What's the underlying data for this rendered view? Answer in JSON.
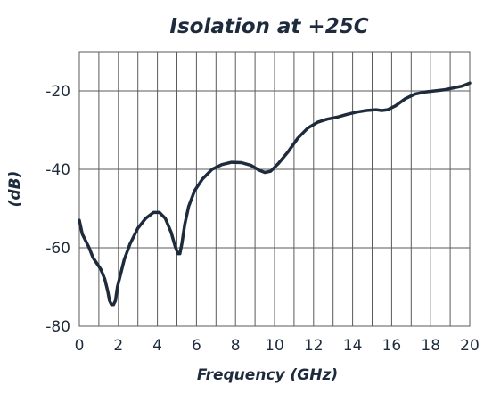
{
  "chart_data": {
    "type": "line",
    "title": "Isolation at +25C",
    "xlabel": "Frequency (GHz)",
    "ylabel": "(dB)",
    "xlim": [
      0,
      20
    ],
    "ylim": [
      -80,
      -10
    ],
    "x_ticks": [
      0,
      2,
      4,
      6,
      8,
      10,
      12,
      14,
      16,
      18,
      20
    ],
    "y_ticks": [
      -80,
      -60,
      -40,
      -20
    ],
    "grid": true,
    "series": [
      {
        "color": "#1e2b3c",
        "x": [
          0.0,
          0.15,
          0.3,
          0.5,
          0.7,
          0.9,
          1.1,
          1.3,
          1.45,
          1.55,
          1.65,
          1.75,
          1.85,
          1.95,
          2.1,
          2.3,
          2.6,
          3.0,
          3.4,
          3.8,
          4.1,
          4.4,
          4.7,
          4.9,
          5.05,
          5.15,
          5.25,
          5.4,
          5.6,
          5.9,
          6.3,
          6.8,
          7.3,
          7.8,
          8.3,
          8.8,
          9.2,
          9.5,
          9.8,
          10.2,
          10.7,
          11.2,
          11.7,
          12.2,
          12.7,
          13.2,
          13.7,
          14.2,
          14.7,
          15.2,
          15.5,
          15.8,
          16.2,
          16.7,
          17.2,
          17.7,
          18.2,
          18.7,
          19.2,
          19.6,
          20.0
        ],
        "y": [
          -53.0,
          -56.5,
          -58.0,
          -60.0,
          -62.5,
          -64.0,
          -65.5,
          -68.0,
          -71.0,
          -73.5,
          -74.5,
          -74.5,
          -73.5,
          -70.0,
          -67.0,
          -63.0,
          -59.0,
          -55.0,
          -52.5,
          -51.0,
          -51.0,
          -52.5,
          -56.0,
          -59.5,
          -61.5,
          -61.5,
          -59.0,
          -54.0,
          -49.5,
          -45.5,
          -42.5,
          -40.0,
          -38.8,
          -38.2,
          -38.3,
          -39.0,
          -40.2,
          -40.8,
          -40.5,
          -38.5,
          -35.5,
          -32.0,
          -29.5,
          -28.0,
          -27.2,
          -26.7,
          -26.0,
          -25.4,
          -25.0,
          -24.8,
          -25.0,
          -24.8,
          -23.8,
          -22.0,
          -20.8,
          -20.3,
          -20.0,
          -19.7,
          -19.2,
          -18.8,
          -18.0
        ]
      }
    ]
  }
}
